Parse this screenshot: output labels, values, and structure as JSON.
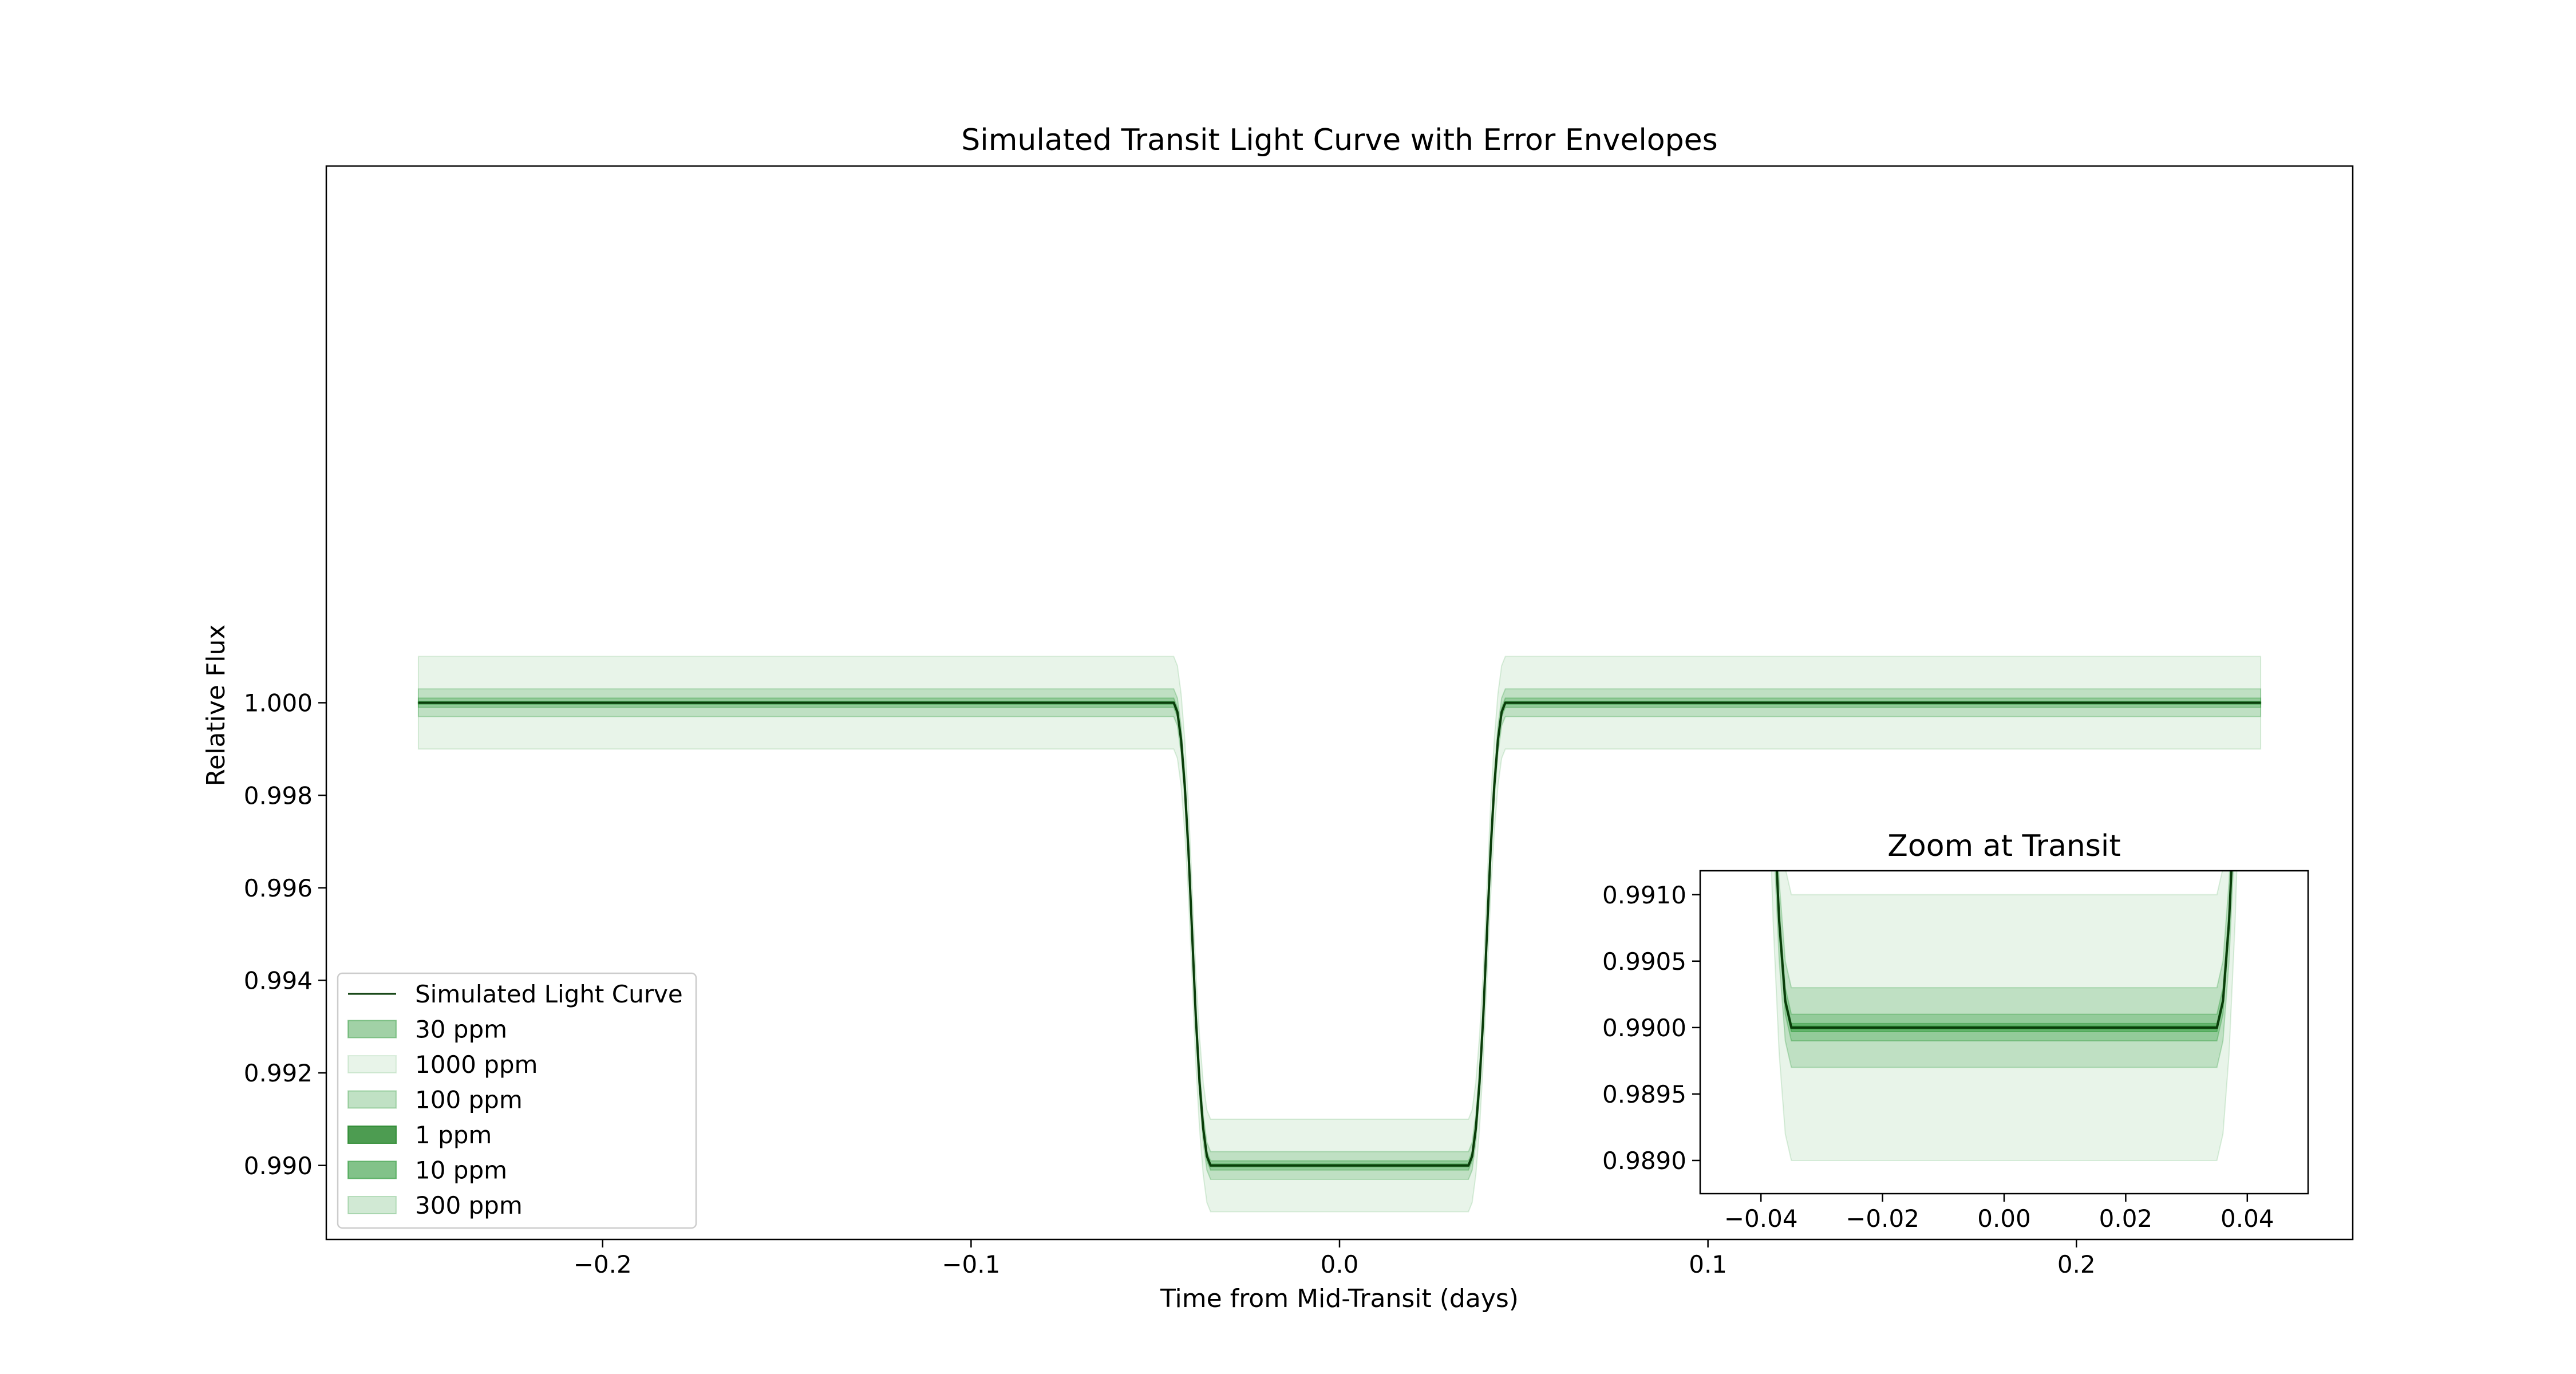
{
  "chart_data": [
    {
      "type": "line",
      "title": "Simulated Transit Light Curve with Error Envelopes",
      "xlabel": "Time from Mid-Transit (days)",
      "ylabel": "Relative Flux",
      "xlim": [
        -0.275,
        0.275
      ],
      "ylim": [
        0.9884,
        1.0116
      ],
      "xticks": [
        -0.2,
        -0.1,
        0.0,
        0.1,
        0.2
      ],
      "xtick_labels": [
        "−0.2",
        "−0.1",
        "0.0",
        "0.1",
        "0.2"
      ],
      "yticks": [
        0.99,
        0.992,
        0.994,
        0.996,
        0.998,
        1.0
      ],
      "ytick_labels": [
        "0.990",
        "0.992",
        "0.994",
        "0.996",
        "0.998",
        "1.000"
      ],
      "grid": false,
      "legend_position": "lower-left",
      "series": [
        {
          "name": "Simulated Light Curve",
          "color": "#0a3d0a",
          "x": [
            -0.25,
            -0.045,
            -0.044,
            -0.043,
            -0.042,
            -0.041,
            -0.04,
            -0.039,
            -0.038,
            -0.037,
            -0.036,
            -0.035,
            0.035,
            0.036,
            0.037,
            0.038,
            0.039,
            0.04,
            0.041,
            0.042,
            0.043,
            0.044,
            0.045,
            0.25
          ],
          "y": [
            1.0,
            1.0,
            0.9998,
            0.9992,
            0.9982,
            0.9968,
            0.995,
            0.9932,
            0.9918,
            0.9908,
            0.9902,
            0.99,
            0.99,
            0.9902,
            0.9908,
            0.9918,
            0.9932,
            0.995,
            0.9968,
            0.9982,
            0.9992,
            0.9998,
            1.0,
            1.0
          ]
        }
      ],
      "envelopes": [
        {
          "name": "30 ppm",
          "ppm": 30,
          "color": "#2e9a3a",
          "opacity": 0.45
        },
        {
          "name": "1000 ppm",
          "ppm": 1000,
          "color": "#2e9a3a",
          "opacity": 0.11
        },
        {
          "name": "100 ppm",
          "ppm": 100,
          "color": "#2e9a3a",
          "opacity": 0.3
        },
        {
          "name": "1 ppm",
          "ppm": 1,
          "color": "#2e8b32",
          "opacity": 0.85
        },
        {
          "name": "10 ppm",
          "ppm": 10,
          "color": "#2e9a3a",
          "opacity": 0.6
        },
        {
          "name": "300 ppm",
          "ppm": 300,
          "color": "#2e9a3a",
          "opacity": 0.22
        }
      ],
      "legend": [
        "Simulated Light Curve",
        "30 ppm",
        "1000 ppm",
        "100 ppm",
        "1 ppm",
        "10 ppm",
        "300 ppm"
      ]
    },
    {
      "type": "line",
      "title": "Zoom at Transit",
      "xlim": [
        -0.05,
        0.05
      ],
      "ylim": [
        0.98875,
        0.99118
      ],
      "xticks": [
        -0.04,
        -0.02,
        0.0,
        0.02,
        0.04
      ],
      "xtick_labels": [
        "−0.04",
        "−0.02",
        "0.00",
        "0.02",
        "0.04"
      ],
      "yticks": [
        0.989,
        0.9895,
        0.99,
        0.9905,
        0.991
      ],
      "ytick_labels": [
        "0.9890",
        "0.9895",
        "0.9900",
        "0.9905",
        "0.9910"
      ],
      "grid": false
    }
  ]
}
